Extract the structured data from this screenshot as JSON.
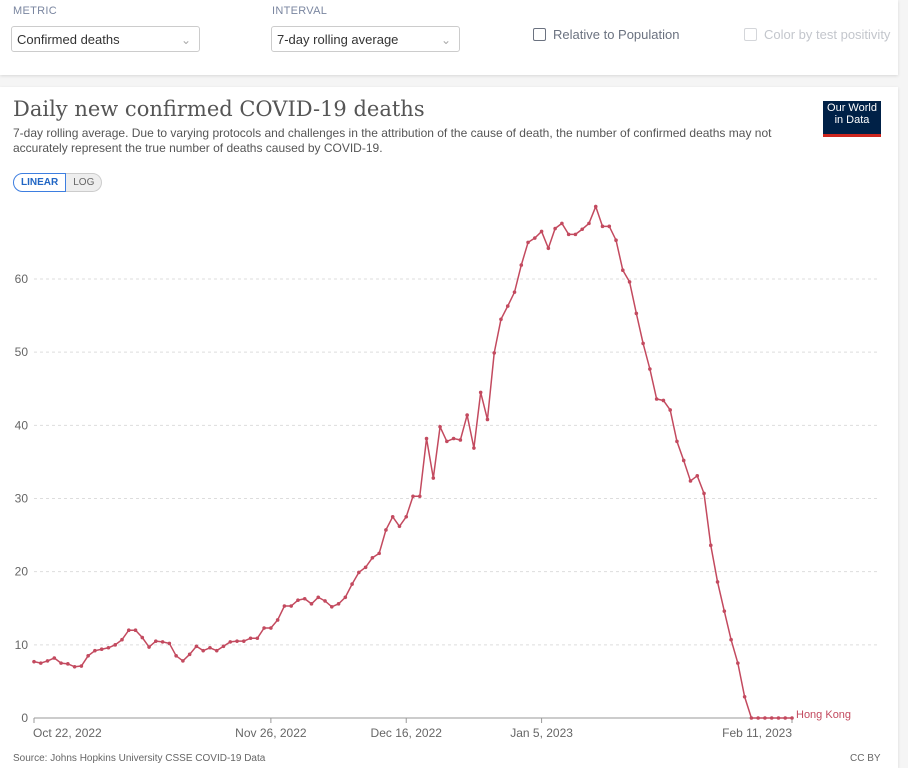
{
  "controls": {
    "metric_label": "METRIC",
    "metric_value": "Confirmed deaths",
    "interval_label": "INTERVAL",
    "interval_value": "7-day rolling average",
    "relative_label": "Relative to Population",
    "positivity_label": "Color by test positivity"
  },
  "logo": {
    "line1": "Our World",
    "line2": "in Data"
  },
  "scale": {
    "linear": "LINEAR",
    "log": "LOG",
    "selected": "LINEAR"
  },
  "footer": {
    "source": "Source: Johns Hopkins University CSSE COVID-19 Data",
    "license": "CC BY"
  },
  "colors": {
    "series": "#c34a5f",
    "grid": "#ddd"
  },
  "chart_data": {
    "type": "line",
    "title": "Daily new confirmed COVID-19 deaths",
    "subtitle": "7-day rolling average. Due to varying protocols and challenges in the attribution of the cause of death, the number of confirmed deaths may not accurately represent the true number of deaths caused by COVID-19.",
    "yticks": [
      0,
      10,
      20,
      30,
      40,
      50,
      60
    ],
    "xticks": [
      {
        "date": "2022-10-22",
        "label": "Oct 22, 2022"
      },
      {
        "date": "2022-11-26",
        "label": "Nov 26, 2022"
      },
      {
        "date": "2022-12-16",
        "label": "Dec 16, 2022"
      },
      {
        "date": "2023-01-05",
        "label": "Jan 5, 2023"
      },
      {
        "date": "2023-02-11",
        "label": "Feb 11, 2023"
      }
    ],
    "ylim": [
      0,
      70
    ],
    "grid": "horizontal dashed",
    "series": [
      {
        "name": "Hong Kong",
        "x": [
          "2022-10-22",
          "2022-10-23",
          "2022-10-24",
          "2022-10-25",
          "2022-10-26",
          "2022-10-27",
          "2022-10-28",
          "2022-10-29",
          "2022-10-30",
          "2022-10-31",
          "2022-11-01",
          "2022-11-02",
          "2022-11-03",
          "2022-11-04",
          "2022-11-05",
          "2022-11-06",
          "2022-11-07",
          "2022-11-08",
          "2022-11-09",
          "2022-11-10",
          "2022-11-11",
          "2022-11-12",
          "2022-11-13",
          "2022-11-14",
          "2022-11-15",
          "2022-11-16",
          "2022-11-17",
          "2022-11-18",
          "2022-11-19",
          "2022-11-20",
          "2022-11-21",
          "2022-11-22",
          "2022-11-23",
          "2022-11-24",
          "2022-11-25",
          "2022-11-26",
          "2022-11-27",
          "2022-11-28",
          "2022-11-29",
          "2022-11-30",
          "2022-12-01",
          "2022-12-02",
          "2022-12-03",
          "2022-12-04",
          "2022-12-05",
          "2022-12-06",
          "2022-12-07",
          "2022-12-08",
          "2022-12-09",
          "2022-12-10",
          "2022-12-11",
          "2022-12-12",
          "2022-12-13",
          "2022-12-14",
          "2022-12-15",
          "2022-12-16",
          "2022-12-17",
          "2022-12-18",
          "2022-12-19",
          "2022-12-20",
          "2022-12-21",
          "2022-12-22",
          "2022-12-23",
          "2022-12-24",
          "2022-12-25",
          "2022-12-26",
          "2022-12-27",
          "2022-12-28",
          "2022-12-29",
          "2022-12-30",
          "2022-12-31",
          "2023-01-01",
          "2023-01-02",
          "2023-01-03",
          "2023-01-04",
          "2023-01-05",
          "2023-01-06",
          "2023-01-07",
          "2023-01-08",
          "2023-01-09",
          "2023-01-10",
          "2023-01-11",
          "2023-01-12",
          "2023-01-13",
          "2023-01-14",
          "2023-01-15",
          "2023-01-16",
          "2023-01-17",
          "2023-01-18",
          "2023-01-19",
          "2023-01-20",
          "2023-01-21",
          "2023-01-22",
          "2023-01-23",
          "2023-01-24",
          "2023-01-25",
          "2023-01-26",
          "2023-01-27",
          "2023-01-28",
          "2023-01-29",
          "2023-01-30",
          "2023-01-31",
          "2023-02-01",
          "2023-02-02",
          "2023-02-03",
          "2023-02-04",
          "2023-02-05",
          "2023-02-06",
          "2023-02-07",
          "2023-02-08",
          "2023-02-09",
          "2023-02-10",
          "2023-02-11"
        ],
        "values": [
          7.7,
          7.5,
          7.8,
          8.2,
          7.5,
          7.4,
          7.0,
          7.1,
          8.5,
          9.2,
          9.4,
          9.6,
          10.0,
          10.7,
          12.0,
          12.0,
          11.0,
          9.7,
          10.5,
          10.4,
          10.2,
          8.5,
          7.8,
          8.7,
          9.8,
          9.2,
          9.6,
          9.2,
          9.8,
          10.4,
          10.5,
          10.5,
          10.9,
          10.9,
          12.3,
          12.3,
          13.4,
          15.3,
          15.3,
          16.1,
          16.3,
          15.6,
          16.5,
          16.0,
          15.2,
          15.6,
          16.5,
          18.3,
          19.9,
          20.6,
          21.9,
          22.5,
          25.7,
          27.5,
          26.2,
          27.5,
          30.3,
          30.3,
          38.2,
          32.8,
          39.8,
          37.8,
          38.2,
          38.0,
          41.4,
          36.9,
          44.5,
          40.8,
          49.9,
          54.5,
          56.3,
          58.2,
          61.9,
          65.0,
          65.6,
          66.5,
          64.2,
          66.9,
          67.6,
          66.1,
          66.1,
          66.8,
          67.6,
          69.9,
          67.2,
          67.2,
          65.3,
          61.2,
          59.6,
          55.3,
          51.2,
          47.7,
          43.6,
          43.4,
          42.1,
          37.8,
          35.2,
          32.4,
          33.1,
          30.7,
          23.6,
          18.6,
          14.6,
          10.7,
          7.5,
          2.9,
          0,
          0,
          0,
          0,
          0,
          0,
          0
        ]
      }
    ]
  }
}
